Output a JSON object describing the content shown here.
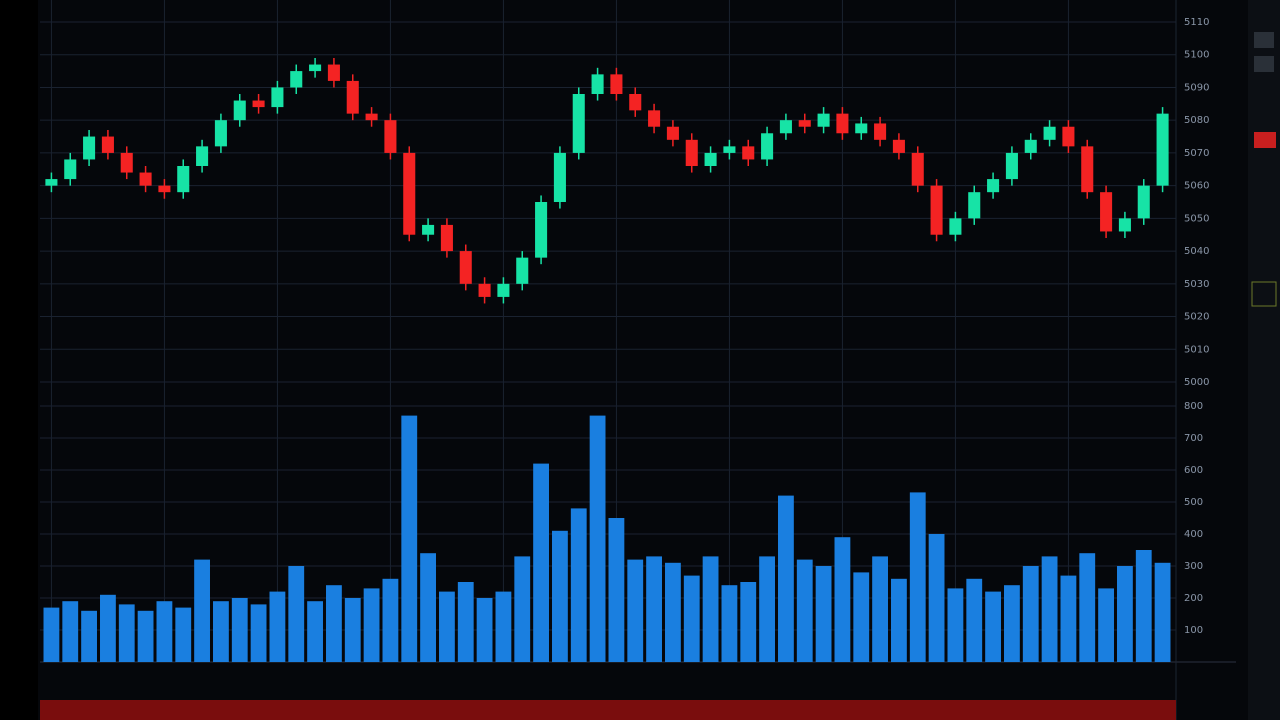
{
  "chart_data": {
    "type": "candlestick",
    "grid": true,
    "up_color": "#17e3a6",
    "down_color": "#f42323",
    "open": [
      5060,
      5062,
      5068,
      5075,
      5070,
      5064,
      5060,
      5058,
      5066,
      5072,
      5080,
      5086,
      5084,
      5090,
      5095,
      5097,
      5092,
      5082,
      5080,
      5070,
      5045,
      5048,
      5040,
      5030,
      5026,
      5030,
      5038,
      5055,
      5070,
      5088,
      5094,
      5088,
      5083,
      5078,
      5074,
      5066,
      5070,
      5072,
      5068,
      5076,
      5080,
      5078,
      5082,
      5076,
      5079,
      5074,
      5070,
      5060,
      5045,
      5050,
      5058,
      5062,
      5070,
      5074,
      5078,
      5072,
      5058,
      5046,
      5050,
      5060
    ],
    "high": [
      5064,
      5070,
      5077,
      5077,
      5072,
      5066,
      5062,
      5068,
      5074,
      5082,
      5088,
      5088,
      5092,
      5097,
      5099,
      5099,
      5094,
      5084,
      5082,
      5072,
      5050,
      5050,
      5042,
      5032,
      5032,
      5040,
      5057,
      5072,
      5090,
      5096,
      5096,
      5090,
      5085,
      5080,
      5076,
      5072,
      5074,
      5074,
      5078,
      5082,
      5082,
      5084,
      5084,
      5081,
      5081,
      5076,
      5072,
      5062,
      5052,
      5060,
      5064,
      5072,
      5076,
      5080,
      5080,
      5074,
      5060,
      5052,
      5062,
      5084
    ],
    "low": [
      5058,
      5060,
      5066,
      5068,
      5062,
      5058,
      5056,
      5056,
      5064,
      5070,
      5078,
      5082,
      5082,
      5088,
      5093,
      5090,
      5080,
      5078,
      5068,
      5043,
      5043,
      5038,
      5028,
      5024,
      5024,
      5028,
      5036,
      5053,
      5068,
      5086,
      5086,
      5081,
      5076,
      5072,
      5064,
      5064,
      5068,
      5066,
      5066,
      5074,
      5076,
      5076,
      5074,
      5074,
      5072,
      5068,
      5058,
      5043,
      5043,
      5048,
      5056,
      5060,
      5068,
      5072,
      5070,
      5056,
      5044,
      5044,
      5048,
      5058
    ],
    "close": [
      5062,
      5068,
      5075,
      5070,
      5064,
      5060,
      5058,
      5066,
      5072,
      5080,
      5086,
      5084,
      5090,
      5095,
      5097,
      5092,
      5082,
      5080,
      5070,
      5045,
      5048,
      5040,
      5030,
      5026,
      5030,
      5038,
      5055,
      5070,
      5088,
      5094,
      5088,
      5083,
      5078,
      5074,
      5066,
      5070,
      5072,
      5068,
      5076,
      5080,
      5078,
      5082,
      5076,
      5079,
      5074,
      5070,
      5060,
      5045,
      5050,
      5058,
      5062,
      5070,
      5074,
      5078,
      5072,
      5058,
      5046,
      5050,
      5060,
      5082
    ],
    "ylim": [
      5000,
      5110
    ],
    "yticks": [
      5000,
      5010,
      5020,
      5030,
      5040,
      5050,
      5060,
      5070,
      5080,
      5090,
      5100,
      5110
    ],
    "volume": {
      "type": "bar",
      "color": "#1a7fe0",
      "values": [
        170,
        190,
        160,
        210,
        180,
        160,
        190,
        170,
        320,
        190,
        200,
        180,
        220,
        300,
        190,
        240,
        200,
        230,
        260,
        770,
        340,
        220,
        250,
        200,
        220,
        330,
        620,
        410,
        480,
        770,
        450,
        320,
        330,
        310,
        270,
        330,
        240,
        250,
        330,
        520,
        320,
        300,
        390,
        280,
        330,
        260,
        530,
        400,
        230,
        260,
        220,
        240,
        300,
        330,
        270,
        340,
        230,
        300,
        350,
        310
      ],
      "ylim": [
        0,
        800
      ],
      "yticks": [
        100,
        200,
        300,
        400,
        500,
        600,
        700,
        800
      ]
    }
  }
}
